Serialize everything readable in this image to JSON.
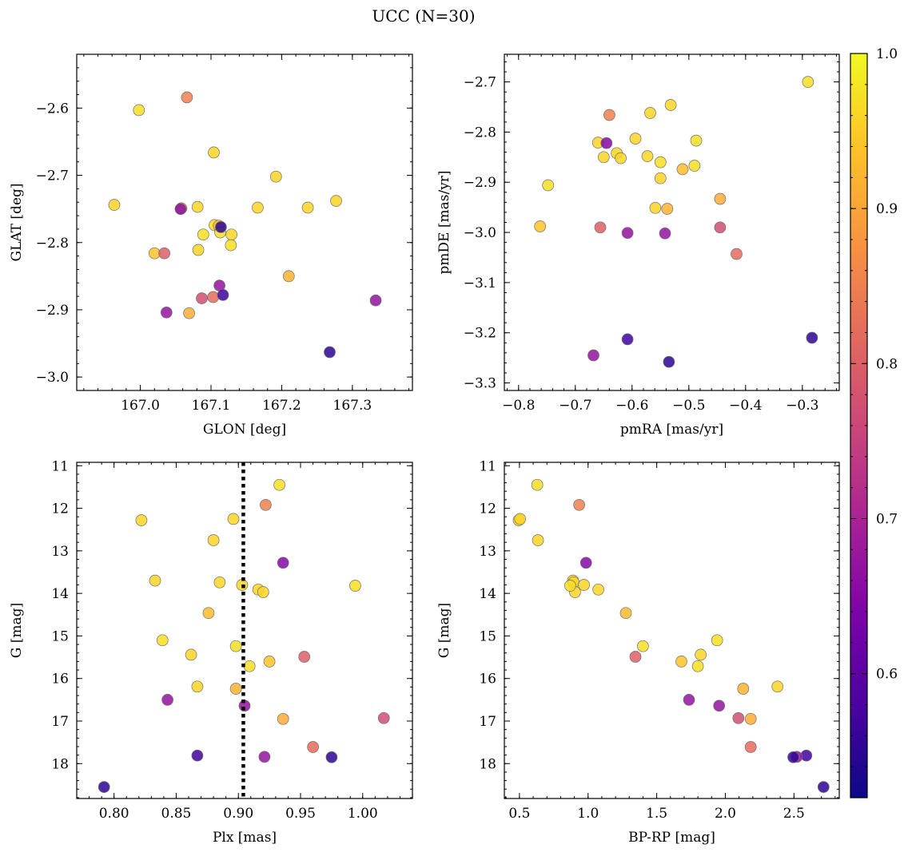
{
  "figure": {
    "title": "UCC (N=30)"
  },
  "colors": {
    "colormap": "plasma",
    "marker_edge": "#6e6e6e",
    "vertical_line": "#000000"
  },
  "chart_data": [
    {
      "type": "scatter",
      "id": "panel-position",
      "xlabel": "GLON [deg]",
      "ylabel": "GLAT [deg]",
      "xlim": [
        166.91,
        167.385
      ],
      "ylim": [
        -3.02,
        -2.52
      ],
      "xticks": [
        167.0,
        167.1,
        167.2,
        167.3
      ],
      "xticklabels": [
        "167.0",
        "167.1",
        "167.2",
        "167.3"
      ],
      "yticks": [
        -3.0,
        -2.9,
        -2.8,
        -2.7,
        -2.6
      ],
      "yticklabels": [
        "−3.0",
        "−2.9",
        "−2.8",
        "−2.7",
        "−2.6"
      ],
      "y_inverted": false,
      "x": [
        166.998,
        167.066,
        167.104,
        166.963,
        167.058,
        167.057,
        167.081,
        167.192,
        167.166,
        167.237,
        167.277,
        167.105,
        167.111,
        167.113,
        167.089,
        167.129,
        167.128,
        167.02,
        167.034,
        167.082,
        167.21,
        167.112,
        167.037,
        167.069,
        167.087,
        167.103,
        167.117,
        167.333,
        167.268,
        167.114
      ],
      "y": [
        -2.603,
        -2.584,
        -2.666,
        -2.744,
        -2.749,
        -2.75,
        -2.747,
        -2.702,
        -2.748,
        -2.748,
        -2.738,
        -2.774,
        -2.775,
        -2.785,
        -2.788,
        -2.788,
        -2.804,
        -2.816,
        -2.816,
        -2.811,
        -2.85,
        -2.864,
        -2.904,
        -2.905,
        -2.883,
        -2.881,
        -2.878,
        -2.886,
        -2.963,
        -2.777
      ]
    },
    {
      "type": "scatter",
      "id": "panel-proper-motion",
      "xlabel": "pmRA [mas/yr]",
      "ylabel": "pmDE [mas/yr]",
      "xlim": [
        -0.825,
        -0.235
      ],
      "ylim": [
        -3.315,
        -2.645
      ],
      "xticks": [
        -0.8,
        -0.7,
        -0.6,
        -0.5,
        -0.4,
        -0.3
      ],
      "xticklabels": [
        "−0.8",
        "−0.7",
        "−0.6",
        "−0.5",
        "−0.4",
        "−0.3"
      ],
      "yticks": [
        -3.3,
        -3.2,
        -3.1,
        -3.0,
        -2.9,
        -2.8,
        -2.7
      ],
      "yticklabels": [
        "−3.3",
        "−3.2",
        "−3.1",
        "−3.0",
        "−2.9",
        "−2.8",
        "−2.7"
      ],
      "y_inverted": false,
      "x": [
        -0.29,
        -0.64,
        -0.568,
        -0.532,
        -0.66,
        -0.645,
        -0.594,
        -0.627,
        -0.62,
        -0.65,
        -0.573,
        -0.55,
        -0.511,
        -0.49,
        -0.487,
        -0.55,
        -0.748,
        -0.762,
        -0.656,
        -0.559,
        -0.538,
        -0.542,
        -0.608,
        -0.445,
        -0.445,
        -0.416,
        -0.608,
        -0.668,
        -0.535,
        -0.283
      ],
      "y": [
        -2.7,
        -2.766,
        -2.762,
        -2.746,
        -2.821,
        -2.822,
        -2.813,
        -2.842,
        -2.852,
        -2.85,
        -2.848,
        -2.86,
        -2.874,
        -2.867,
        -2.817,
        -2.892,
        -2.906,
        -2.988,
        -2.99,
        -2.951,
        -2.953,
        -3.002,
        -3.001,
        -2.933,
        -2.99,
        -3.043,
        -3.213,
        -3.245,
        -3.258,
        -3.21
      ]
    },
    {
      "type": "scatter",
      "id": "panel-parallax",
      "xlabel": "Plx [mas]",
      "ylabel": "G [mag]",
      "xlim": [
        0.77,
        1.04
      ],
      "ylim": [
        18.82,
        10.92
      ],
      "xticks": [
        0.8,
        0.85,
        0.9,
        0.95,
        1.0
      ],
      "xticklabels": [
        "0.80",
        "0.85",
        "0.90",
        "0.95",
        "1.00"
      ],
      "yticks": [
        11,
        12,
        13,
        14,
        15,
        16,
        17,
        18
      ],
      "yticklabels": [
        "11",
        "12",
        "13",
        "14",
        "15",
        "16",
        "17",
        "18"
      ],
      "y_inverted": true,
      "vline": {
        "x": 0.904,
        "style": "dotted"
      },
      "x": [
        0.933,
        0.922,
        0.822,
        0.896,
        0.88,
        0.936,
        0.833,
        0.885,
        0.903,
        0.916,
        0.92,
        0.994,
        0.876,
        0.839,
        0.898,
        0.862,
        0.909,
        0.925,
        0.953,
        0.867,
        0.898,
        0.843,
        0.905,
        0.936,
        1.017,
        0.96,
        0.867,
        0.921,
        0.975,
        0.792
      ],
      "y": [
        11.45,
        11.92,
        12.28,
        12.25,
        12.75,
        13.28,
        13.7,
        13.74,
        13.8,
        13.91,
        13.97,
        13.82,
        14.46,
        15.1,
        15.24,
        15.44,
        15.71,
        15.6,
        15.49,
        16.19,
        16.24,
        16.5,
        16.64,
        16.95,
        16.93,
        17.61,
        17.81,
        17.84,
        17.85,
        18.55
      ]
    },
    {
      "type": "scatter",
      "id": "panel-cmd",
      "xlabel": "BP-RP [mag]",
      "ylabel": "G [mag]",
      "xlim": [
        0.39,
        2.83
      ],
      "ylim": [
        18.82,
        10.92
      ],
      "xticks": [
        0.5,
        1.0,
        1.5,
        2.0,
        2.5
      ],
      "xticklabels": [
        "0.5",
        "1.0",
        "1.5",
        "2.0",
        "2.5"
      ],
      "yticks": [
        11,
        12,
        13,
        14,
        15,
        16,
        17,
        18
      ],
      "yticklabels": [
        "11",
        "12",
        "13",
        "14",
        "15",
        "16",
        "17",
        "18"
      ],
      "y_inverted": true,
      "x": [
        0.63,
        0.935,
        0.495,
        0.505,
        0.635,
        0.985,
        0.89,
        0.895,
        0.97,
        1.075,
        0.905,
        0.87,
        1.275,
        1.94,
        1.4,
        1.82,
        1.8,
        1.68,
        1.345,
        2.38,
        2.13,
        1.735,
        1.955,
        2.185,
        2.095,
        2.185,
        2.59,
        2.52,
        2.495,
        2.715
      ],
      "y": [
        11.45,
        11.92,
        12.28,
        12.25,
        12.75,
        13.28,
        13.7,
        13.74,
        13.8,
        13.91,
        13.97,
        13.82,
        14.46,
        15.1,
        15.24,
        15.44,
        15.71,
        15.6,
        15.49,
        16.19,
        16.24,
        16.5,
        16.64,
        16.95,
        16.93,
        17.61,
        17.81,
        17.84,
        17.85,
        18.55
      ]
    }
  ],
  "colorbar": {
    "range": [
      0.52,
      1.0
    ],
    "ticks": [
      0.6,
      0.7,
      0.8,
      0.9,
      1.0
    ],
    "ticklabels": [
      "0.6",
      "0.7",
      "0.8",
      "0.9",
      "1.0"
    ],
    "values": [
      0.97,
      0.85,
      0.96,
      0.96,
      0.96,
      0.65,
      0.96,
      0.96,
      0.96,
      0.96,
      0.96,
      0.97,
      0.93,
      0.97,
      0.97,
      0.96,
      0.97,
      0.94,
      0.8,
      0.96,
      0.92,
      0.67,
      0.67,
      0.91,
      0.77,
      0.82,
      0.57,
      0.67,
      0.55,
      0.55
    ]
  }
}
